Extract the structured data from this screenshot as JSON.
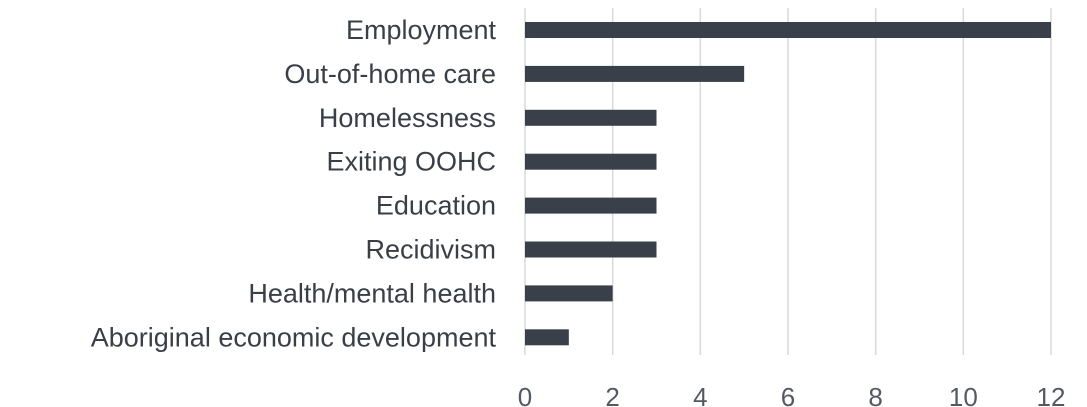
{
  "chart_data": {
    "type": "bar",
    "orientation": "horizontal",
    "categories": [
      "Employment",
      "Out-of-home care",
      "Homelessness",
      "Exiting OOHC",
      "Education",
      "Recidivism",
      "Health/mental health",
      "Aboriginal economic development"
    ],
    "values": [
      12,
      5,
      3,
      3,
      3,
      3,
      2,
      1
    ],
    "xlim": [
      0,
      12
    ],
    "xticks": [
      0,
      2,
      4,
      6,
      8,
      10,
      12
    ],
    "xtick_labels": [
      "0",
      "2",
      "4",
      "6",
      "8",
      "10",
      "12"
    ],
    "grid": "vertical",
    "bar_color": "#3a4049",
    "title": "",
    "xlabel": "",
    "ylabel": ""
  }
}
